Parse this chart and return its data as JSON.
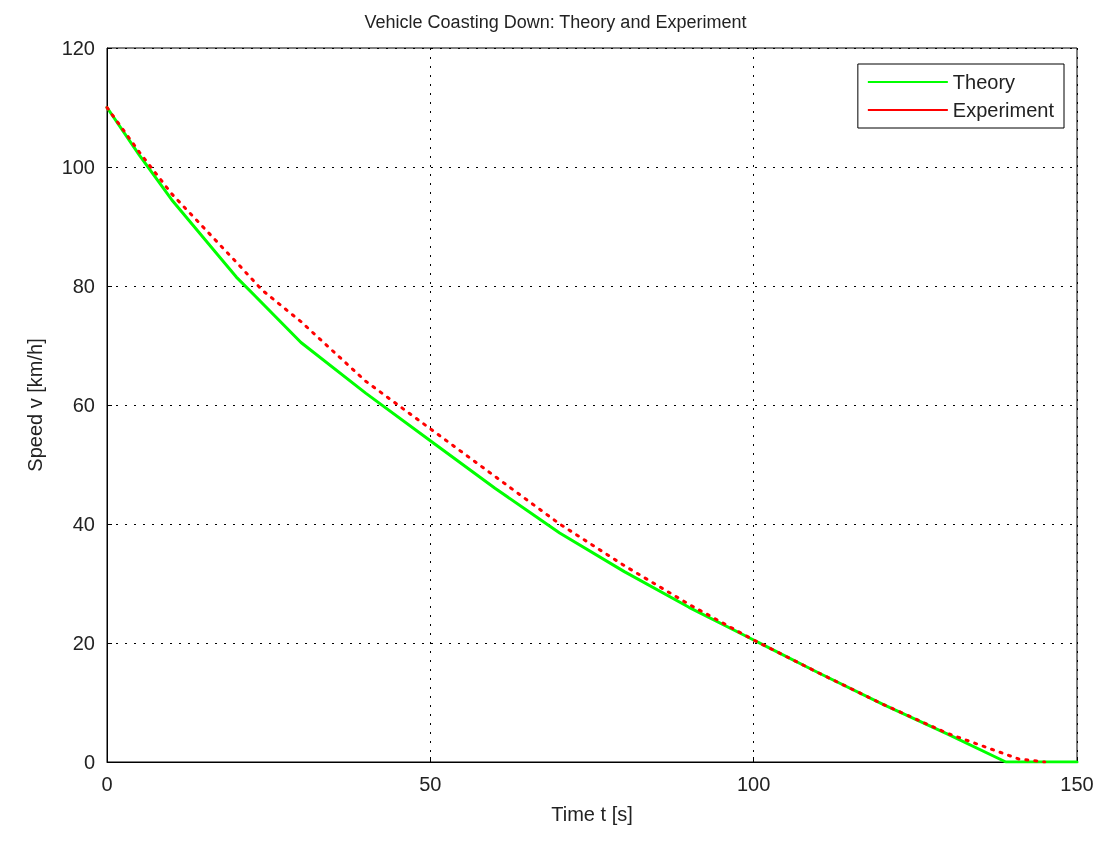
{
  "chart_data": {
    "type": "line",
    "title": "Vehicle Coasting Down: Theory and Experiment",
    "xlabel": "Time t [s]",
    "ylabel": "Speed v [km/h]",
    "xlim": [
      0,
      150
    ],
    "xticks": [
      0,
      50,
      100,
      150
    ],
    "ylim": [
      0,
      120
    ],
    "yticks": [
      0,
      20,
      40,
      60,
      80,
      100,
      120
    ],
    "grid": true,
    "legend": "top right",
    "marker": "none",
    "series": [
      {
        "name": "Theory",
        "color": "#00ff00",
        "line_style": "solid",
        "x": [
          0,
          5,
          10,
          20,
          30,
          40,
          50,
          60,
          70,
          80,
          90,
          100,
          110,
          120,
          130,
          139,
          150
        ],
        "values": [
          110,
          102,
          94.5,
          81.5,
          70.5,
          62,
          54,
          46,
          38.5,
          32,
          26,
          20.5,
          15,
          9.7,
          4.7,
          0,
          0
        ]
      },
      {
        "name": "Experiment",
        "color": "#ff0000",
        "line_style": "dotted",
        "x": [
          0,
          5,
          10,
          20,
          24,
          30,
          40,
          50,
          60,
          70,
          80,
          90,
          100,
          110,
          120,
          130,
          141,
          145
        ],
        "values": [
          110,
          102.5,
          95.5,
          84,
          79.3,
          74,
          64,
          56,
          48,
          40,
          33,
          26.5,
          20.5,
          15,
          9.7,
          4.8,
          0.5,
          0
        ]
      }
    ]
  }
}
